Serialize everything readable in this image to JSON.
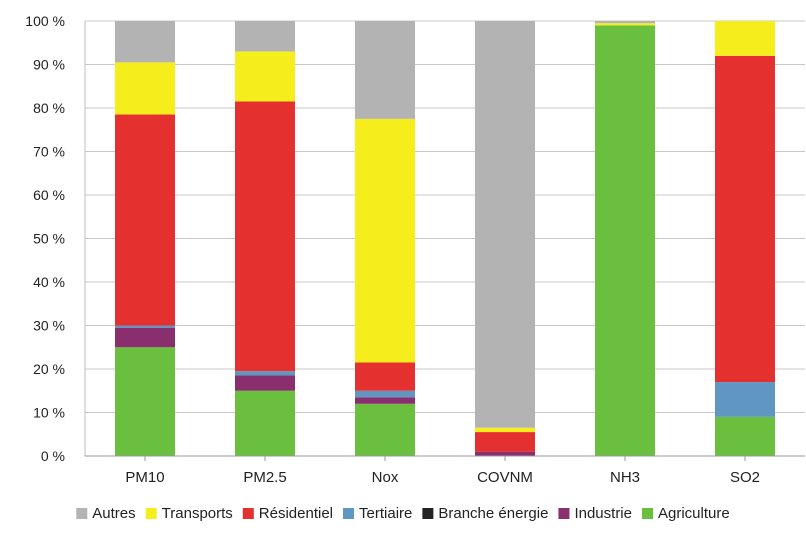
{
  "chart_data": {
    "type": "bar",
    "stacked": true,
    "categories": [
      "PM10",
      "PM2.5",
      "Nox",
      "COVNM",
      "NH3",
      "SO2"
    ],
    "ylim": [
      0,
      100
    ],
    "yticks": [
      "0 %",
      "10 %",
      "20 %",
      "30 %",
      "40 %",
      "50 %",
      "60 %",
      "70 %",
      "80 %",
      "90 %",
      "100 %"
    ],
    "grid": true,
    "legend_position": "bottom",
    "series": [
      {
        "name": "Agriculture",
        "color": "#6abf3f",
        "values": [
          25,
          15,
          12,
          0,
          99,
          9
        ]
      },
      {
        "name": "Industrie",
        "color": "#8a2f6e",
        "values": [
          4.5,
          3.5,
          1.5,
          1,
          0,
          0
        ]
      },
      {
        "name": "Branche énergie",
        "color": "#222222",
        "values": [
          0,
          0,
          0,
          0,
          0,
          0
        ]
      },
      {
        "name": "Tertiaire",
        "color": "#5f97c2",
        "values": [
          0.5,
          1,
          1.5,
          0,
          0,
          8
        ]
      },
      {
        "name": "Résidentiel",
        "color": "#e53030",
        "values": [
          48.5,
          62,
          6.5,
          4.5,
          0,
          75
        ]
      },
      {
        "name": "Transports",
        "color": "#f5ee1c",
        "values": [
          12,
          11.5,
          56,
          1,
          0.5,
          8
        ]
      },
      {
        "name": "Autres",
        "color": "#b3b3b3",
        "values": [
          9.5,
          7,
          22.5,
          93.5,
          0.5,
          0
        ]
      }
    ]
  }
}
